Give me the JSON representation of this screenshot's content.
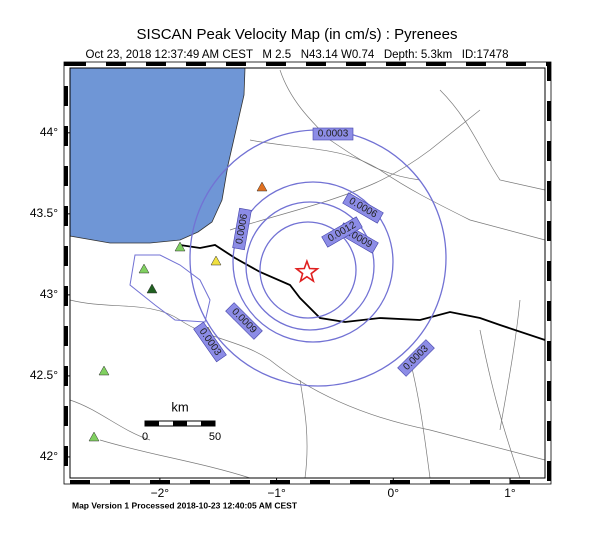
{
  "header": {
    "title": "SISCAN Peak Velocity Map (in cm/s) : Pyrenees",
    "subtitle": "Oct 23, 2018 12:37:49 AM CEST   M 2.5   N43.14 W0.74   Depth: 5.3km   ID:17478"
  },
  "map": {
    "lon_range": [
      -2.77,
      1.3
    ],
    "lat_range": [
      41.87,
      44.4
    ],
    "lat_ticks": [
      {
        "value": 44,
        "label": "44°"
      },
      {
        "value": 43.5,
        "label": "43.5°"
      },
      {
        "value": 43,
        "label": "43°"
      },
      {
        "value": 42.5,
        "label": "42.5°"
      },
      {
        "value": 42,
        "label": "42°"
      }
    ],
    "lon_ticks": [
      {
        "value": -2,
        "label": "−2°"
      },
      {
        "value": -1,
        "label": "−1°"
      },
      {
        "value": 0,
        "label": "0°"
      },
      {
        "value": 1,
        "label": "1°"
      }
    ],
    "epicenter": {
      "lon": -0.74,
      "lat": 43.14
    },
    "contour_labels": [
      "0.0003",
      "0.0006",
      "0.0009",
      "0.0012",
      "0.0006",
      "0.0009",
      "0.0003",
      "0.0003"
    ],
    "scale_bar": {
      "unit": "km",
      "labels": [
        "0",
        "50"
      ]
    }
  },
  "footer": "Map Version 1 Processed 2018-10-23 12:40:05 AM CEST"
}
